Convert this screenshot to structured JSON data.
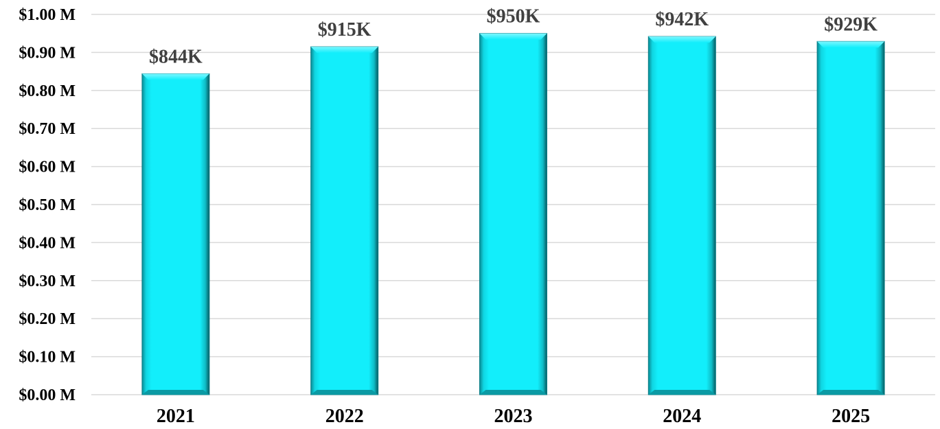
{
  "chart_data": {
    "type": "bar",
    "title": "",
    "xlabel": "",
    "ylabel": "",
    "categories": [
      "2021",
      "2022",
      "2023",
      "2024",
      "2025"
    ],
    "values": [
      844000,
      915000,
      950000,
      942000,
      929000
    ],
    "data_labels": [
      "$844K",
      "$915K",
      "$950K",
      "$942K",
      "$929K"
    ],
    "ylim": [
      0,
      1000000
    ],
    "y_ticks": [
      0,
      100000,
      200000,
      300000,
      400000,
      500000,
      600000,
      700000,
      800000,
      900000,
      1000000
    ],
    "y_tick_labels": [
      "$0.00 M",
      "$0.10 M",
      "$0.20 M",
      "$0.30 M",
      "$0.40 M",
      "$0.50 M",
      "$0.60 M",
      "$0.70 M",
      "$0.80 M",
      "$0.90 M",
      "$1.00 M"
    ],
    "grid": true,
    "legend": "none",
    "bar_color": "#12eefb",
    "bar_edge_color": "#0a7d86",
    "data_label_color": "#404040",
    "grid_color": "#d9d9d9"
  }
}
